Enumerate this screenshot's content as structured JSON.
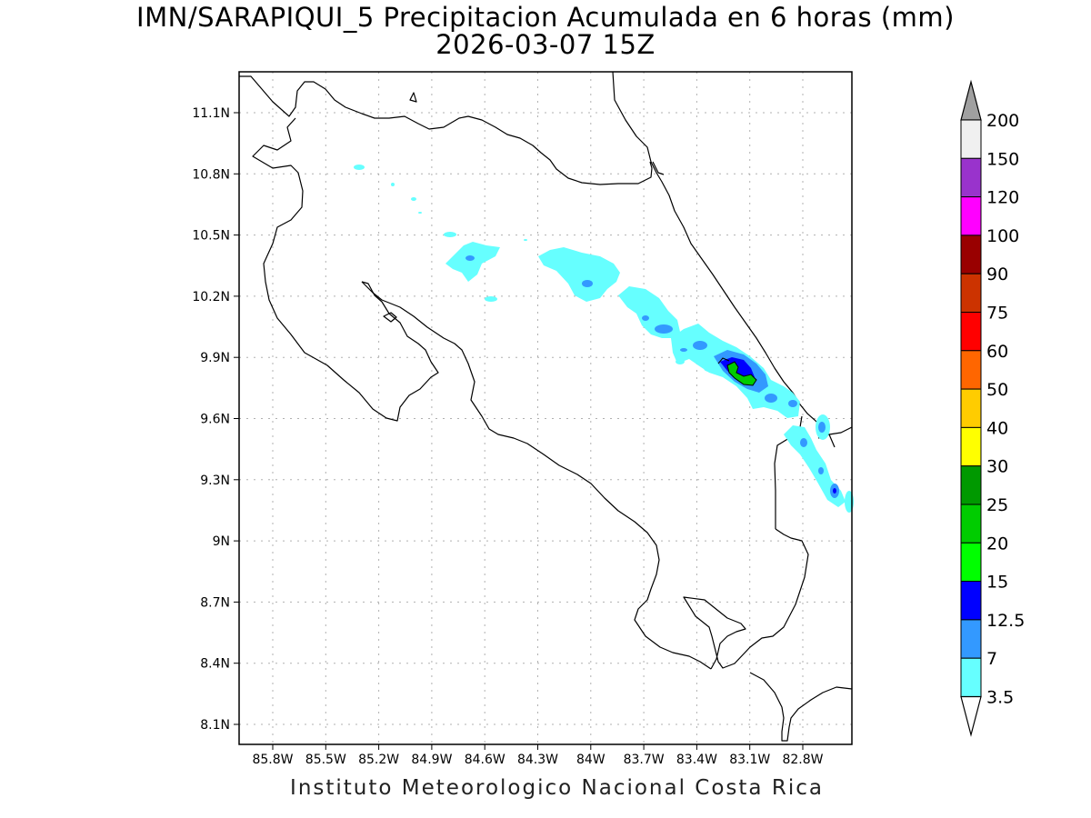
{
  "title": {
    "line1": "IMN/SARAPIQUI_5 Precipitacion Acumulada en 6 horas (mm)",
    "line2": "2026-03-07 15Z"
  },
  "credit": "Instituto Meteorologico Nacional Costa Rica",
  "map": {
    "lon_range": [
      -85.96,
      -82.56
    ],
    "lat_range": [
      8.0,
      11.3
    ],
    "lat_ticks": [
      "11.1N",
      "10.8N",
      "10.5N",
      "10.2N",
      "9.9N",
      "9.6N",
      "9.3N",
      "9N",
      "8.7N",
      "8.4N",
      "8.1N"
    ],
    "lon_ticks": [
      "85.8W",
      "85.5W",
      "85.2W",
      "84.9W",
      "84.6W",
      "84.3W",
      "84W",
      "83.7W",
      "83.4W",
      "83.1W",
      "82.8W"
    ],
    "grid": "dotted"
  },
  "colorbar": {
    "labels": [
      "200",
      "150",
      "120",
      "100",
      "90",
      "75",
      "60",
      "50",
      "40",
      "30",
      "25",
      "20",
      "15",
      "12.5",
      "7",
      "3.5"
    ],
    "colors": {
      "top_arrow": "#a0a0a0",
      "c150_200": "#f0f0f0",
      "c120_150": "#9933cc",
      "c100_120": "#ff00ff",
      "c90_100": "#990000",
      "c75_90": "#cc3300",
      "c60_75": "#ff0000",
      "c50_60": "#ff6600",
      "c40_50": "#ffcc00",
      "c30_40": "#ffff00",
      "c25_30": "#009900",
      "c20_25": "#00cc00",
      "c15_20": "#00ff00",
      "c12_15": "#0000ff",
      "c7_12": "#3399ff",
      "c3_7": "#66ffff",
      "bottom_arrow": "#ffffff"
    }
  },
  "precip_colors": {
    "light": "#66ffff",
    "moderate": "#3399ff",
    "heavy": "#0000ff",
    "very_heavy": "#00cc00"
  }
}
